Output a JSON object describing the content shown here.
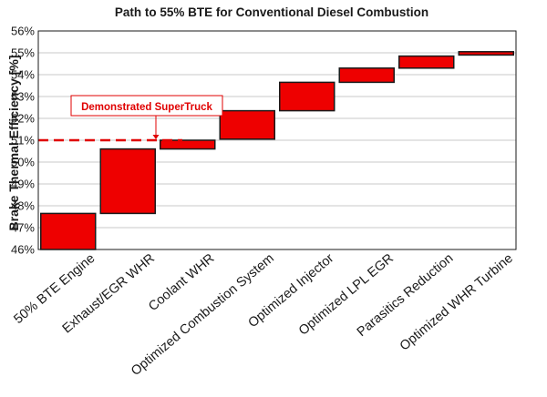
{
  "chart_data": {
    "type": "bar",
    "subtype": "waterfall",
    "title": "Path to 55% BTE for Conventional Diesel Combustion",
    "ylabel": "Brake Thermal Efficiency [%]",
    "xlabel": "",
    "ylim": [
      46,
      56
    ],
    "yticks": [
      "46%",
      "47%",
      "48%",
      "49%",
      "50%",
      "51%",
      "52%",
      "53%",
      "54%",
      "55%",
      "56%"
    ],
    "grid": true,
    "categories": [
      "50% BTE Engine",
      "Exhaust/EGR WHR",
      "Coolant WHR",
      "Optimized Combustion System",
      "Optimized Injector",
      "Optimized LPL EGR",
      "Parasitics Reduction",
      "Optimized WHR Turbine"
    ],
    "bars": [
      {
        "start": 46.0,
        "end": 47.65
      },
      {
        "start": 47.65,
        "end": 50.6
      },
      {
        "start": 50.6,
        "end": 51.0
      },
      {
        "start": 51.05,
        "end": 52.35
      },
      {
        "start": 52.35,
        "end": 53.65
      },
      {
        "start": 53.65,
        "end": 54.3
      },
      {
        "start": 54.3,
        "end": 54.85
      },
      {
        "start": 54.9,
        "end": 55.05
      }
    ],
    "reference": {
      "value": 51.0,
      "label": "Demonstrated SuperTruck"
    },
    "colors": {
      "bar_fill": "#ee0000",
      "bar_stroke": "#1a1a1a",
      "reference_line": "#e00000",
      "annotation_text": "#e00000",
      "grid": "#c8c8c8"
    }
  }
}
